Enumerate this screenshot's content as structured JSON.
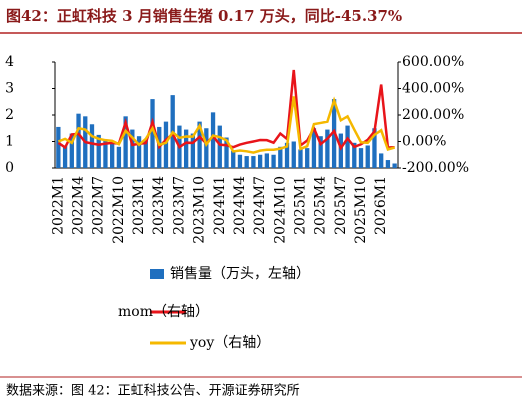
{
  "chart_data": {
    "type": "bar-line",
    "title": "图42：正虹科技 3 月销售生猪 0.17 万头，同比-45.37%",
    "source": "数据来源：图 42：正虹科技公告、开源证券研究所",
    "categories": [
      "2022M1",
      null,
      null,
      "2022M4",
      null,
      null,
      "2022M7",
      null,
      null,
      "2022M10",
      null,
      null,
      "2023M1",
      null,
      null,
      "2023M4",
      null,
      null,
      "2023M7",
      null,
      null,
      "2023M10",
      null,
      null,
      "2024M1",
      null,
      null,
      "2024M4",
      null,
      null,
      "2024M7",
      null,
      null,
      "2024M10",
      null,
      null,
      "2025M1",
      null,
      null,
      "2025M4",
      null,
      null,
      "2025M7",
      null,
      null,
      "2025M10",
      null,
      null,
      "2026M1",
      null,
      null
    ],
    "series": [
      {
        "name": "销售量（万头，左轴）",
        "kind": "bar",
        "color": "#1f6fbf",
        "values": [
          1.55,
          0.85,
          1.3,
          2.05,
          1.95,
          1.65,
          1.25,
          1.05,
          0.95,
          0.8,
          1.95,
          1.45,
          1.2,
          1.05,
          2.6,
          1.55,
          1.75,
          2.75,
          1.6,
          1.45,
          1.3,
          1.75,
          1.5,
          2.1,
          1.6,
          1.15,
          0.65,
          0.5,
          0.45,
          0.45,
          0.5,
          0.55,
          0.5,
          0.8,
          0.95,
          1.0,
          0.7,
          0.75,
          1.5,
          1.2,
          1.45,
          2.6,
          1.3,
          1.6,
          0.95,
          0.75,
          0.85,
          1.5,
          0.55,
          0.3,
          0.17
        ]
      },
      {
        "name": "mom（右轴）",
        "kind": "line",
        "axis": "y2",
        "color": "#e8141a",
        "values": [
          -10,
          -45,
          53,
          58,
          -5,
          -15,
          -24,
          -16,
          -10,
          -16,
          144,
          -26,
          -17,
          -12,
          148,
          -40,
          13,
          57,
          -42,
          -9,
          -10,
          35,
          -14,
          40,
          -24,
          -28,
          -43,
          -23,
          -10,
          0,
          11,
          10,
          -9,
          60,
          19,
          540,
          -30,
          7,
          100,
          -20,
          21,
          79,
          -50,
          23,
          -41,
          -21,
          13,
          76,
          430,
          -45,
          -43
        ]
      },
      {
        "name": "yoy（右轴）",
        "kind": "line",
        "axis": "y2",
        "color": "#f5b800",
        "values": [
          0,
          20,
          -10,
          100,
          90,
          40,
          20,
          10,
          5,
          -20,
          80,
          30,
          -25,
          20,
          100,
          -25,
          -10,
          70,
          28,
          38,
          37,
          119,
          -23,
          45,
          33,
          10,
          -75,
          -68,
          -74,
          -84,
          -69,
          -62,
          -62,
          -54,
          -37,
          340,
          -56,
          -35,
          131,
          140,
          150,
          310,
          160,
          190,
          90,
          -6,
          -10,
          50,
          85,
          -60,
          -45.37
        ]
      }
    ],
    "ylim": [
      0,
      4
    ],
    "yticks": [
      0,
      1,
      2,
      3,
      4
    ],
    "y2lim": [
      -200,
      600
    ],
    "y2ticks": [
      {
        "value": -200,
        "label": "-200.00%"
      },
      {
        "value": 0,
        "label": "0.00%"
      },
      {
        "value": 200,
        "label": "200.00%"
      },
      {
        "value": 400,
        "label": "400.00%"
      },
      {
        "value": 600,
        "label": "600.00%"
      }
    ]
  }
}
